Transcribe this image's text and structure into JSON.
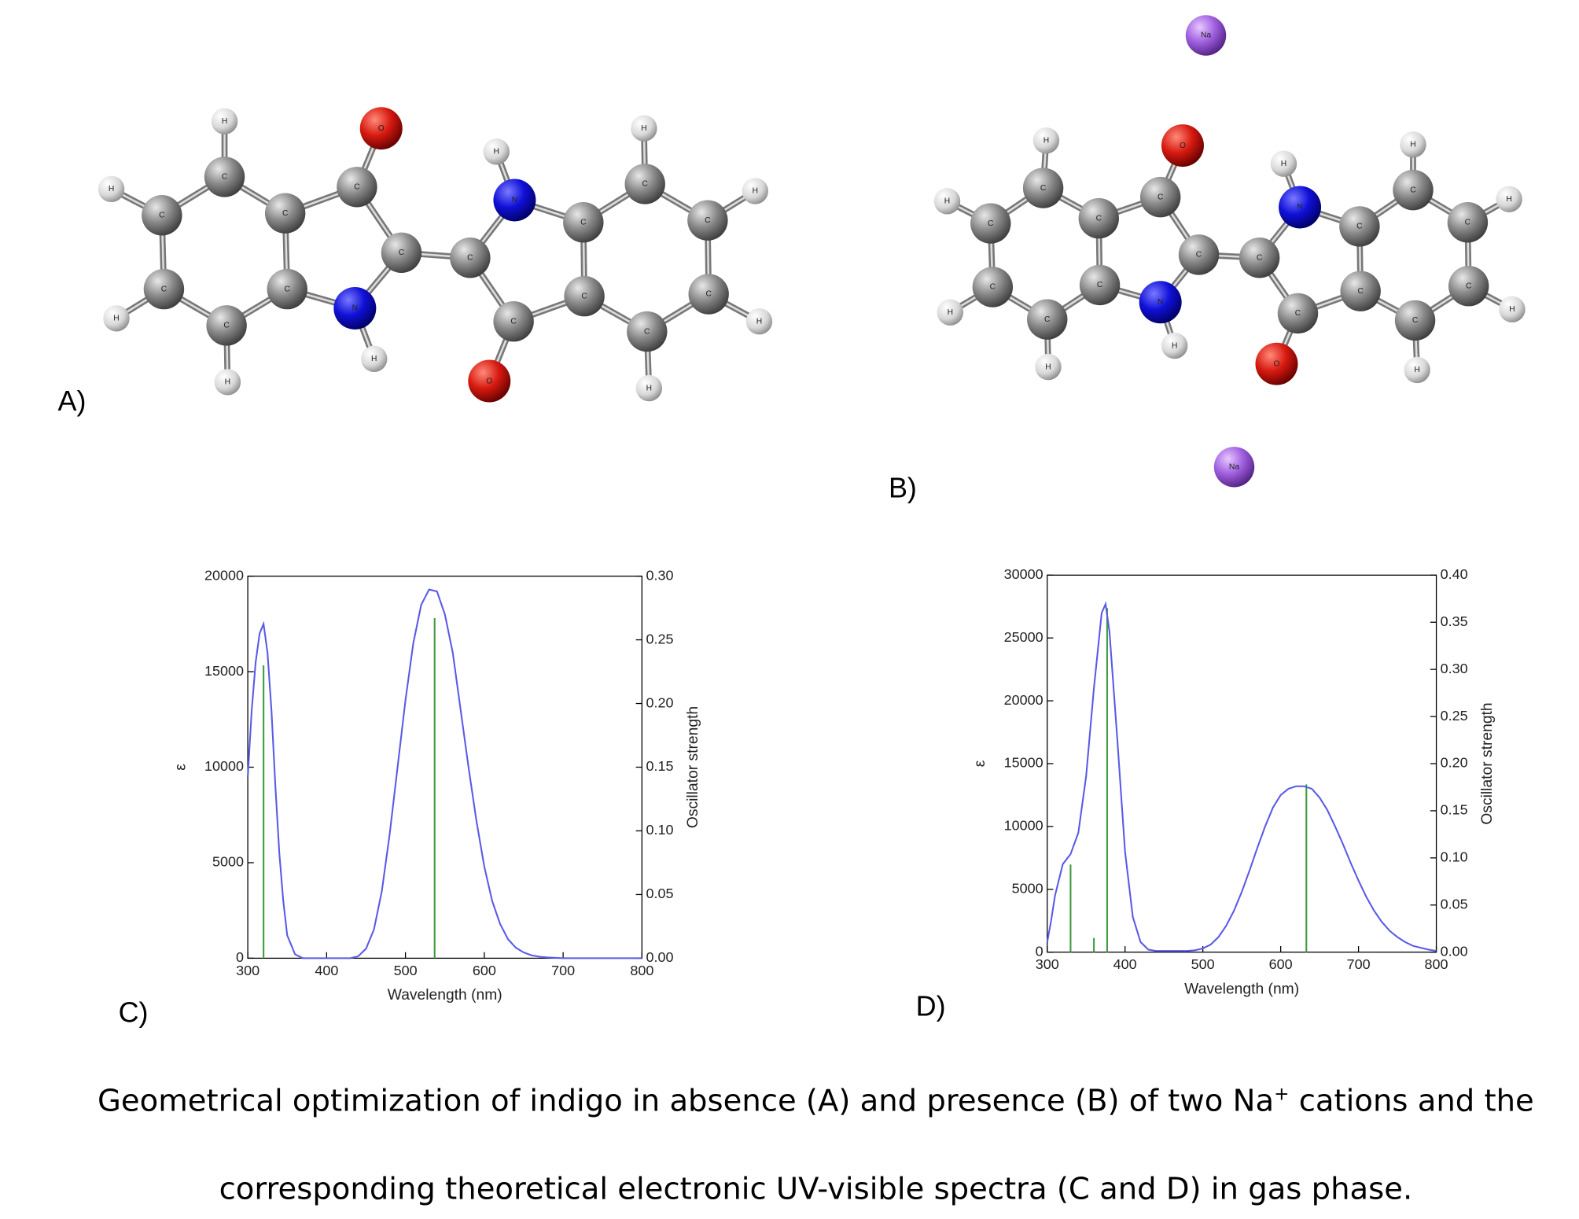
{
  "figure": {
    "molecules": [
      {
        "panel_label": "A)",
        "atoms": [
          "C",
          "C",
          "C",
          "C",
          "C",
          "C",
          "H",
          "H",
          "H",
          "H",
          "C",
          "O",
          "C",
          "N",
          "H",
          "C",
          "N",
          "H",
          "C",
          "O",
          "C",
          "C",
          "C",
          "C",
          "C",
          "C",
          "H",
          "H",
          "H",
          "H"
        ]
      },
      {
        "panel_label": "B)",
        "atoms": [
          "C",
          "C",
          "C",
          "C",
          "C",
          "C",
          "H",
          "H",
          "H",
          "H",
          "C",
          "O",
          "C",
          "N",
          "H",
          "C",
          "N",
          "H",
          "C",
          "O",
          "C",
          "C",
          "C",
          "C",
          "C",
          "C",
          "H",
          "H",
          "H",
          "H",
          "Na",
          "Na"
        ]
      }
    ],
    "caption": {
      "line1_before": "Geometrical optimization of indigo in absence (A) and presence (B) of two Na",
      "line1_sup": "+",
      "line1_after": " cations and the",
      "line2": "corresponding theoretical electronic UV-visible spectra (C and D) in gas phase."
    }
  },
  "chart_data": [
    {
      "type": "line",
      "panel_label": "C)",
      "xlabel": "Wavelength (nm)",
      "ylabel": "ε",
      "y2label": "Oscillator strength",
      "xlim": [
        300,
        800
      ],
      "xticks": [
        300,
        400,
        500,
        600,
        700,
        800
      ],
      "ylim": [
        0,
        20000
      ],
      "yticks": [
        0,
        5000,
        10000,
        15000,
        20000
      ],
      "y2lim": [
        0,
        0.3
      ],
      "y2ticks": [
        {
          "value": 0,
          "label": "0.00"
        },
        0.05,
        {
          "value": 0.1,
          "label": "0.10"
        },
        0.15,
        {
          "value": 0.2,
          "label": "0.20"
        },
        0.25,
        {
          "value": 0.3,
          "label": "0.30"
        }
      ],
      "series": [
        {
          "type": "line",
          "color": "#5959e8",
          "x": [
            300,
            305,
            310,
            315,
            320,
            325,
            330,
            335,
            340,
            345,
            350,
            360,
            370,
            380,
            390,
            400,
            410,
            420,
            430,
            440,
            450,
            460,
            470,
            480,
            490,
            500,
            510,
            520,
            530,
            540,
            550,
            560,
            570,
            580,
            590,
            600,
            610,
            620,
            630,
            640,
            650,
            660,
            670,
            680,
            690,
            700,
            720,
            740,
            760,
            780,
            800
          ],
          "values": [
            9500,
            13000,
            15500,
            17000,
            17500,
            16000,
            13000,
            9000,
            5500,
            3000,
            1200,
            200,
            0,
            0,
            0,
            0,
            0,
            0,
            0,
            100,
            500,
            1500,
            3500,
            6500,
            10000,
            13500,
            16500,
            18500,
            19300,
            19200,
            18000,
            16000,
            13000,
            10000,
            7200,
            4800,
            3000,
            1800,
            1000,
            550,
            300,
            150,
            80,
            40,
            20,
            0,
            0,
            0,
            0,
            0,
            0
          ]
        },
        {
          "type": "stick",
          "axis": "y2",
          "color": "#3d9a3d",
          "x": [
            320,
            537
          ],
          "values": [
            0.23,
            0.267
          ]
        }
      ]
    },
    {
      "type": "line",
      "panel_label": "D)",
      "xlabel": "Wavelength (nm)",
      "ylabel": "ε",
      "y2label": "Oscillator strength",
      "xlim": [
        300,
        800
      ],
      "xticks": [
        300,
        400,
        500,
        600,
        700,
        800
      ],
      "ylim": [
        0,
        30000
      ],
      "yticks": [
        0,
        5000,
        10000,
        15000,
        20000,
        25000,
        30000
      ],
      "y2lim": [
        0,
        0.4
      ],
      "y2ticks": [
        {
          "value": 0,
          "label": "0.00"
        },
        0.05,
        {
          "value": 0.1,
          "label": "0.10"
        },
        0.15,
        {
          "value": 0.2,
          "label": "0.20"
        },
        0.25,
        {
          "value": 0.3,
          "label": "0.30"
        },
        0.35,
        {
          "value": 0.4,
          "label": "0.40"
        }
      ],
      "series": [
        {
          "type": "line",
          "color": "#5959e8",
          "x": [
            300,
            305,
            310,
            320,
            330,
            340,
            350,
            360,
            370,
            375,
            380,
            390,
            400,
            410,
            420,
            430,
            440,
            460,
            480,
            490,
            500,
            510,
            520,
            530,
            540,
            550,
            560,
            570,
            580,
            590,
            600,
            610,
            620,
            630,
            640,
            650,
            660,
            670,
            680,
            690,
            700,
            710,
            720,
            730,
            740,
            750,
            760,
            770,
            780,
            790,
            800
          ],
          "values": [
            800,
            2500,
            4500,
            7000,
            7800,
            9500,
            14000,
            21000,
            27000,
            27700,
            25500,
            17000,
            8000,
            2800,
            800,
            200,
            100,
            100,
            100,
            150,
            300,
            600,
            1200,
            2100,
            3300,
            4800,
            6500,
            8300,
            10000,
            11500,
            12500,
            13000,
            13200,
            13200,
            13000,
            12300,
            11300,
            10000,
            8600,
            7100,
            5700,
            4400,
            3300,
            2400,
            1700,
            1200,
            800,
            500,
            350,
            200,
            100
          ]
        },
        {
          "type": "stick",
          "axis": "y2",
          "color": "#3d9a3d",
          "x": [
            330,
            360,
            377,
            633
          ],
          "values": [
            0.093,
            0.015,
            0.365,
            0.178
          ]
        }
      ]
    }
  ]
}
